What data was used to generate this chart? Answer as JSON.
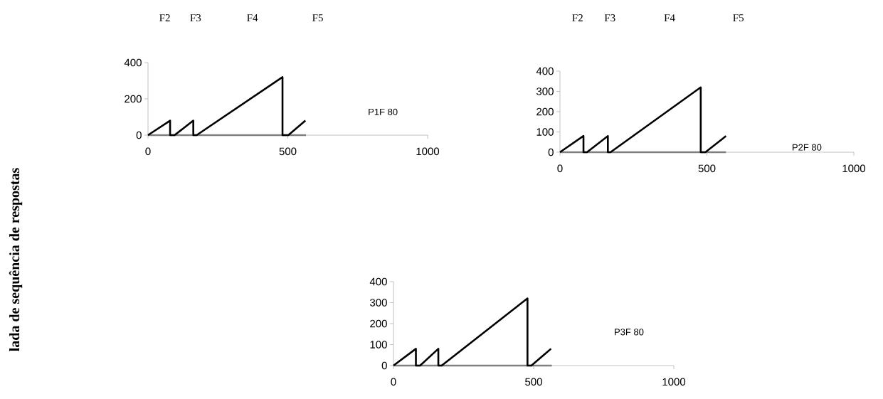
{
  "chart_data": [
    {
      "type": "line",
      "ylabel": "lada de sequência de respostas",
      "xlim": [
        0,
        1000
      ],
      "ylim": [
        0,
        400
      ],
      "xticks": [
        0,
        500,
        1000
      ],
      "yticks": [
        0,
        200,
        400
      ],
      "series": [
        {
          "color": "#808080",
          "x": [
            0,
            565
          ],
          "values": [
            0,
            0
          ]
        },
        {
          "color": "#000000",
          "x": [
            0,
            79,
            79,
            95,
            162,
            162,
            174,
            481,
            481,
            502,
            563
          ],
          "values": [
            0,
            80,
            0,
            0,
            80,
            0,
            0,
            320,
            0,
            0,
            80
          ]
        }
      ],
      "annotations": [
        "F2",
        "F3",
        "F4",
        "F5",
        "P1F 80"
      ]
    },
    {
      "type": "line",
      "xlim": [
        0,
        1000
      ],
      "ylim": [
        0,
        400
      ],
      "xticks": [
        0,
        500,
        1000
      ],
      "yticks": [
        0,
        100,
        200,
        300,
        400
      ],
      "series": [
        {
          "color": "#808080",
          "x": [
            0,
            565
          ],
          "values": [
            0,
            0
          ]
        },
        {
          "color": "#000000",
          "x": [
            0,
            80,
            80,
            92,
            163,
            163,
            172,
            479,
            479,
            495,
            565
          ],
          "values": [
            0,
            80,
            0,
            0,
            80,
            0,
            0,
            320,
            0,
            0,
            80
          ]
        }
      ],
      "annotations": [
        "F2",
        "F3",
        "F4",
        "F5",
        "P2F 80"
      ]
    },
    {
      "type": "line",
      "xlim": [
        0,
        1000
      ],
      "ylim": [
        0,
        400
      ],
      "xticks": [
        0,
        500,
        1000
      ],
      "yticks": [
        0,
        100,
        200,
        300,
        400
      ],
      "series": [
        {
          "color": "#808080",
          "x": [
            0,
            565
          ],
          "values": [
            0,
            0
          ]
        },
        {
          "color": "#000000",
          "x": [
            0,
            80,
            80,
            95,
            160,
            160,
            172,
            478,
            478,
            492,
            562
          ],
          "values": [
            0,
            80,
            0,
            0,
            80,
            0,
            0,
            320,
            0,
            0,
            80
          ]
        }
      ],
      "annotations": [
        "P3F 80"
      ]
    }
  ]
}
